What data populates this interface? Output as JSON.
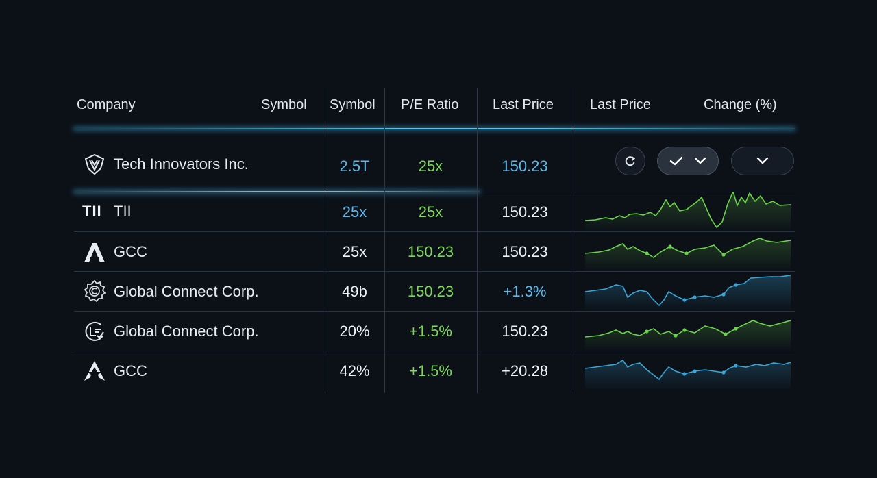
{
  "header": {
    "company": "Company",
    "symbol_1": "Symbol",
    "symbol_2": "Symbol",
    "pe_ratio": "P/E Ratio",
    "last_price_1": "Last Price",
    "last_price_2": "Last Price",
    "change": "Change (%)"
  },
  "rows": [
    {
      "company": "Tech Innovators Inc.",
      "col1": "2.5T",
      "col2": "25x",
      "col3": "150.23",
      "logo": "shield-icon"
    },
    {
      "company": "TII",
      "col1": "25x",
      "col2": "25x",
      "col3": "150.23",
      "logo": "tii-logo",
      "logo_text": "TII",
      "spark_color": "#6cd44a"
    },
    {
      "company": "GCC",
      "col1": "25x",
      "col2": "150.23",
      "col3": "150.23",
      "logo": "a-logo",
      "spark_color": "#6cd44a"
    },
    {
      "company": "Global Connect Corp.",
      "col1": "49b",
      "col2": "150.23",
      "col3": "+1.3%",
      "logo": "gear-icon",
      "spark_color": "#3aa6d8"
    },
    {
      "company": "Global Connect Corp.",
      "col1": "20%",
      "col2": "+1.5%",
      "col3": "150.23",
      "logo": "globe-icon",
      "spark_color": "#6cd44a"
    },
    {
      "company": "GCC",
      "col1": "42%",
      "col2": "+1.5%",
      "col3": "+20.28",
      "logo": "star-icon",
      "spark_color": "#3aa6d8"
    }
  ],
  "controls": {
    "refresh_icon": "refresh-icon",
    "check_icon": "check-icon",
    "chevron_icon": "chevron-down-icon"
  },
  "colors": {
    "background": "#0c1118",
    "accent_blue": "#5fb8e8",
    "accent_green": "#7ed957",
    "glow": "#4cc8f0"
  }
}
